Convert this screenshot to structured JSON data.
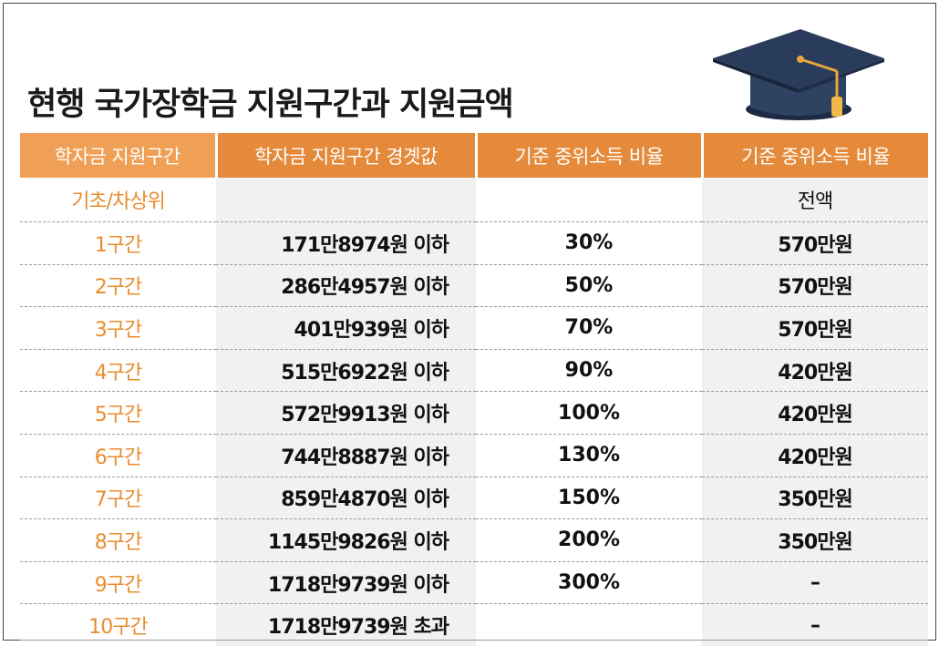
{
  "title": "현행 국가장학금 지원구간과 지원금액",
  "icon": "graduation-cap-icon",
  "colors": {
    "header_light": "#f0a056",
    "header_dark": "#e48a3a",
    "band_text": "#e88d2e",
    "shade": "#f1f1f1"
  },
  "table": {
    "headers": [
      "학자금 지원구간",
      "학자금 지원구간 경곗값",
      "기준 중위소득 비율",
      "기준 중위소득 비율"
    ],
    "rows": [
      {
        "band": "기초/차상위",
        "threshold": "",
        "ratio": "",
        "amount": "전액"
      },
      {
        "band": "1구간",
        "threshold": "171만8974원 이하",
        "ratio": "30%",
        "amount": "570만원"
      },
      {
        "band": "2구간",
        "threshold": "286만4957원 이하",
        "ratio": "50%",
        "amount": "570만원"
      },
      {
        "band": "3구간",
        "threshold": "401만939원 이하",
        "ratio": "70%",
        "amount": "570만원"
      },
      {
        "band": "4구간",
        "threshold": "515만6922원 이하",
        "ratio": "90%",
        "amount": "420만원"
      },
      {
        "band": "5구간",
        "threshold": "572만9913원 이하",
        "ratio": "100%",
        "amount": "420만원"
      },
      {
        "band": "6구간",
        "threshold": "744만8887원 이하",
        "ratio": "130%",
        "amount": "420만원"
      },
      {
        "band": "7구간",
        "threshold": "859만4870원 이하",
        "ratio": "150%",
        "amount": "350만원"
      },
      {
        "band": "8구간",
        "threshold": "1145만9826원 이하",
        "ratio": "200%",
        "amount": "350만원"
      },
      {
        "band": "9구간",
        "threshold": "1718만9739원 이하",
        "ratio": "300%",
        "amount": "–"
      },
      {
        "band": "10구간",
        "threshold": "1718만9739원 초과",
        "ratio": "",
        "amount": "–"
      }
    ]
  }
}
